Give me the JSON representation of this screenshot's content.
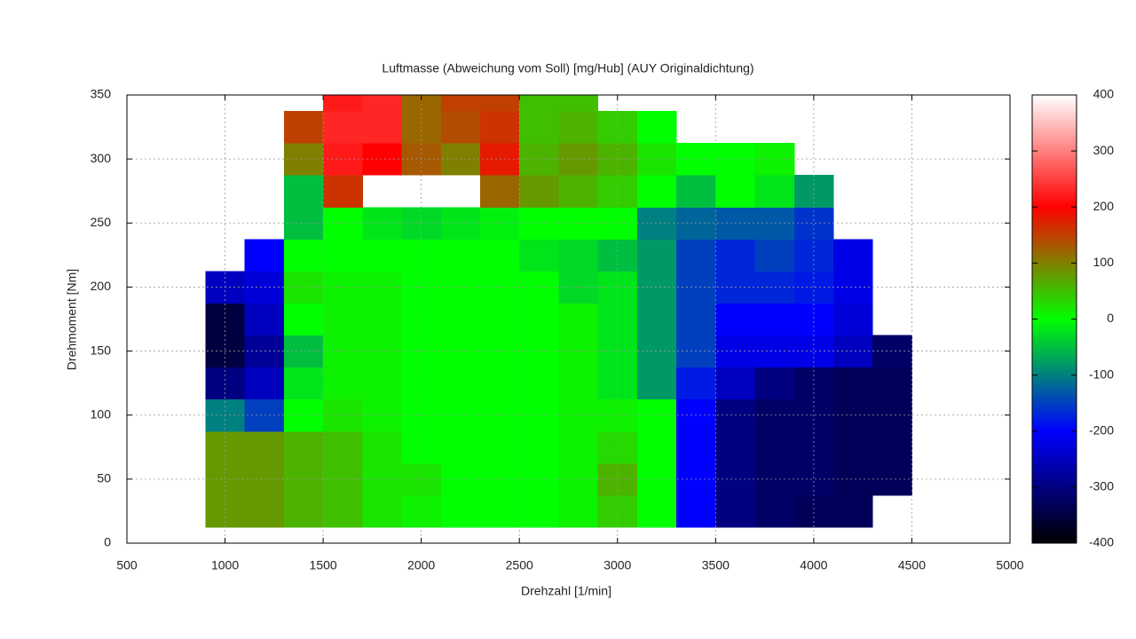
{
  "chart_data": {
    "type": "heatmap",
    "title": "Luftmasse (Abweichung vom Soll) [mg/Hub]   (AUY Originaldichtung)",
    "x_label": "Drehzahl [1/min]",
    "y_label": "Drehmoment [Nm]",
    "x": [
      1000,
      1200,
      1400,
      1600,
      1800,
      2000,
      2200,
      2400,
      2600,
      2800,
      3000,
      3200,
      3400,
      3600,
      3800,
      4000,
      4200,
      4400
    ],
    "y": [
      25,
      50,
      75,
      100,
      125,
      150,
      175,
      200,
      225,
      250,
      275,
      300,
      325,
      350
    ],
    "values": [
      [
        80,
        80,
        60,
        50,
        20,
        10,
        0,
        0,
        0,
        10,
        40,
        0,
        -200,
        -300,
        -320,
        -330,
        -330,
        null
      ],
      [
        80,
        80,
        60,
        50,
        20,
        20,
        0,
        0,
        0,
        10,
        60,
        0,
        -200,
        -300,
        -320,
        -320,
        -330,
        -330
      ],
      [
        80,
        80,
        60,
        50,
        20,
        0,
        0,
        0,
        0,
        10,
        30,
        0,
        -200,
        -300,
        -320,
        -320,
        -330,
        -330
      ],
      [
        -100,
        -150,
        0,
        20,
        10,
        0,
        0,
        0,
        0,
        10,
        10,
        0,
        -200,
        -300,
        -320,
        -320,
        -330,
        -330
      ],
      [
        -300,
        -250,
        -20,
        10,
        10,
        0,
        0,
        0,
        0,
        10,
        -20,
        -80,
        -180,
        -250,
        -300,
        -320,
        -330,
        -330
      ],
      [
        -350,
        -280,
        -50,
        10,
        10,
        0,
        0,
        0,
        0,
        10,
        -20,
        -80,
        -150,
        -220,
        -220,
        -220,
        -250,
        -320
      ],
      [
        -350,
        -250,
        0,
        10,
        10,
        0,
        0,
        0,
        0,
        10,
        -20,
        -80,
        -150,
        -200,
        -200,
        -200,
        -230,
        null
      ],
      [
        -250,
        -230,
        20,
        10,
        10,
        0,
        0,
        0,
        0,
        -30,
        -20,
        -80,
        -150,
        -170,
        -170,
        -180,
        -220,
        null
      ],
      [
        null,
        -200,
        0,
        0,
        0,
        0,
        0,
        0,
        -20,
        -30,
        -50,
        -80,
        -150,
        -170,
        -150,
        -170,
        -220,
        null
      ],
      [
        null,
        null,
        -50,
        0,
        -20,
        -30,
        -20,
        -10,
        0,
        0,
        0,
        -100,
        -120,
        -130,
        -130,
        -160,
        null,
        null
      ],
      [
        null,
        null,
        -50,
        160,
        null,
        null,
        null,
        120,
        80,
        60,
        40,
        0,
        -50,
        0,
        -20,
        -80,
        null,
        null
      ],
      [
        null,
        null,
        100,
        220,
        200,
        130,
        100,
        180,
        60,
        80,
        60,
        20,
        0,
        0,
        10,
        null,
        null,
        null
      ],
      [
        null,
        null,
        150,
        230,
        230,
        120,
        140,
        160,
        50,
        60,
        40,
        0,
        null,
        null,
        null,
        null,
        null,
        null
      ],
      [
        null,
        null,
        null,
        220,
        230,
        120,
        150,
        150,
        50,
        50,
        null,
        null,
        null,
        null,
        null,
        null,
        null,
        null
      ]
    ],
    "xlim": [
      500,
      5000
    ],
    "ylim": [
      0,
      350
    ],
    "xticks": [
      500,
      1000,
      1500,
      2000,
      2500,
      3000,
      3500,
      4000,
      4500,
      5000
    ],
    "yticks": [
      0,
      50,
      100,
      150,
      200,
      250,
      300,
      350
    ],
    "clim": [
      -400,
      400
    ],
    "cticks": [
      -400,
      -300,
      -200,
      -100,
      0,
      100,
      200,
      300,
      400
    ],
    "colormap": [
      "#000000",
      "#0000ff",
      "#00ff00",
      "#ff0000",
      "#ffffff"
    ],
    "grid": true
  }
}
